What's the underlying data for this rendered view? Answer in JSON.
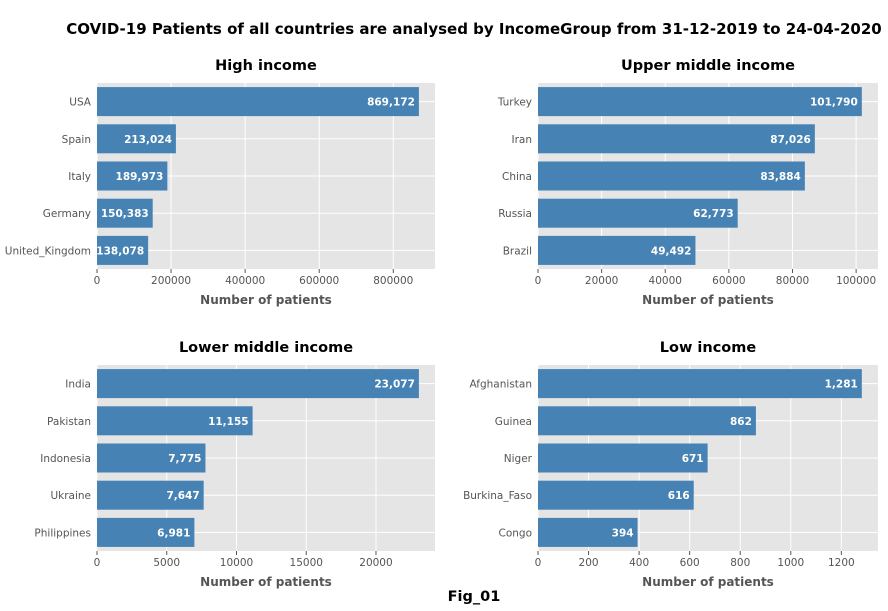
{
  "figure": {
    "title": "COVID-19 Patients of all countries are analysed by IncomeGroup from 31-12-2019 to 24-04-2020",
    "caption": "Fig_01",
    "bar_color": "#4682b4",
    "background_color": "#e5e5e5",
    "grid_color": "#ffffff"
  },
  "chart_data": [
    {
      "type": "bar",
      "orientation": "horizontal",
      "title": "High income",
      "xlabel": "Number of patients",
      "categories": [
        "USA",
        "Spain",
        "Italy",
        "Germany",
        "United_Kingdom"
      ],
      "values": [
        869172,
        213024,
        189973,
        150383,
        138078
      ],
      "value_labels": [
        "869,172",
        "213,024",
        "189,973",
        "150,383",
        "138,078"
      ],
      "xlim": [
        0,
        912630
      ],
      "xticks": [
        0,
        200000,
        400000,
        600000,
        800000
      ],
      "grid": true
    },
    {
      "type": "bar",
      "orientation": "horizontal",
      "title": "Upper middle income",
      "xlabel": "Number of patients",
      "categories": [
        "Turkey",
        "Iran",
        "China",
        "Russia",
        "Brazil"
      ],
      "values": [
        101790,
        87026,
        83884,
        62773,
        49492
      ],
      "value_labels": [
        "101,790",
        "87,026",
        "83,884",
        "62,773",
        "49,492"
      ],
      "xlim": [
        0,
        106880
      ],
      "xticks": [
        0,
        20000,
        40000,
        60000,
        80000,
        100000
      ],
      "grid": true
    },
    {
      "type": "bar",
      "orientation": "horizontal",
      "title": "Lower middle income",
      "xlabel": "Number of patients",
      "categories": [
        "India",
        "Pakistan",
        "Indonesia",
        "Ukraine",
        "Philippines"
      ],
      "values": [
        23077,
        11155,
        7775,
        7647,
        6981
      ],
      "value_labels": [
        "23,077",
        "11,155",
        "7,775",
        "7,647",
        "6,981"
      ],
      "xlim": [
        0,
        24231
      ],
      "xticks": [
        0,
        5000,
        10000,
        15000,
        20000
      ],
      "grid": true
    },
    {
      "type": "bar",
      "orientation": "horizontal",
      "title": "Low income",
      "xlabel": "Number of patients",
      "categories": [
        "Afghanistan",
        "Guinea",
        "Niger",
        "Burkina_Faso",
        "Congo"
      ],
      "values": [
        1281,
        862,
        671,
        616,
        394
      ],
      "value_labels": [
        "1,281",
        "862",
        "671",
        "616",
        "394"
      ],
      "xlim": [
        0,
        1345
      ],
      "xticks": [
        0,
        200,
        400,
        600,
        800,
        1000,
        1200
      ],
      "grid": true
    }
  ]
}
